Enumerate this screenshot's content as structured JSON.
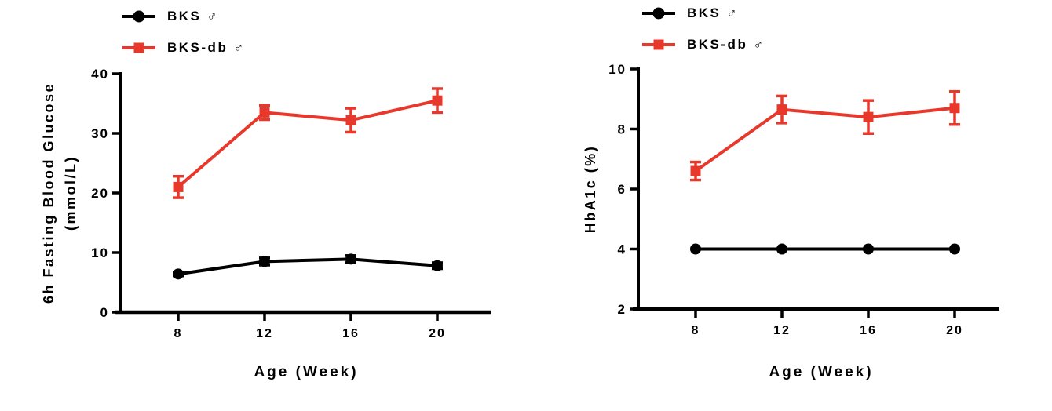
{
  "figure": {
    "background": "#ffffff",
    "accent_black": "#000000",
    "accent_red": "#E8382C"
  },
  "chart_data": [
    {
      "type": "line",
      "title": "",
      "xlabel": "Age (Week)",
      "ylabel": "6h Fasting Blood Glucose (mmol/L)",
      "ylabel_lines": [
        "6h Fasting Blood Glucose",
        "(mmol/L)"
      ],
      "x": [
        8,
        12,
        16,
        20
      ],
      "xticks": [
        "8",
        "12",
        "16",
        "20"
      ],
      "ylim": [
        0,
        40
      ],
      "yticks": [
        0,
        10,
        20,
        30,
        40
      ],
      "grid": false,
      "legend_position": "top-left",
      "series": [
        {
          "name": "BKS ♂",
          "color": "#000000",
          "marker": "circle",
          "values": [
            6.4,
            8.5,
            8.9,
            7.8
          ],
          "errors": [
            0.3,
            0.6,
            0.6,
            0.5
          ]
        },
        {
          "name": "BKS-db ♂",
          "color": "#E8382C",
          "marker": "square",
          "values": [
            21.0,
            33.5,
            32.2,
            35.5
          ],
          "errors": [
            1.8,
            1.2,
            2.0,
            2.0
          ]
        }
      ]
    },
    {
      "type": "line",
      "title": "",
      "xlabel": "Age (Week)",
      "ylabel": "HbA1c (%)",
      "ylabel_lines": [
        "HbA1c (%)"
      ],
      "x": [
        8,
        12,
        16,
        20
      ],
      "xticks": [
        "8",
        "12",
        "16",
        "20"
      ],
      "ylim": [
        2,
        10
      ],
      "yticks": [
        2,
        4,
        6,
        8,
        10
      ],
      "grid": false,
      "legend_position": "top-left",
      "series": [
        {
          "name": "BKS ♂",
          "color": "#000000",
          "marker": "circle",
          "values": [
            4.0,
            4.0,
            4.0,
            4.0
          ],
          "errors": [
            0,
            0,
            0,
            0
          ]
        },
        {
          "name": "BKS-db ♂",
          "color": "#E8382C",
          "marker": "square",
          "values": [
            6.6,
            8.65,
            8.4,
            8.7
          ],
          "errors": [
            0.3,
            0.45,
            0.55,
            0.55
          ]
        }
      ]
    }
  ]
}
